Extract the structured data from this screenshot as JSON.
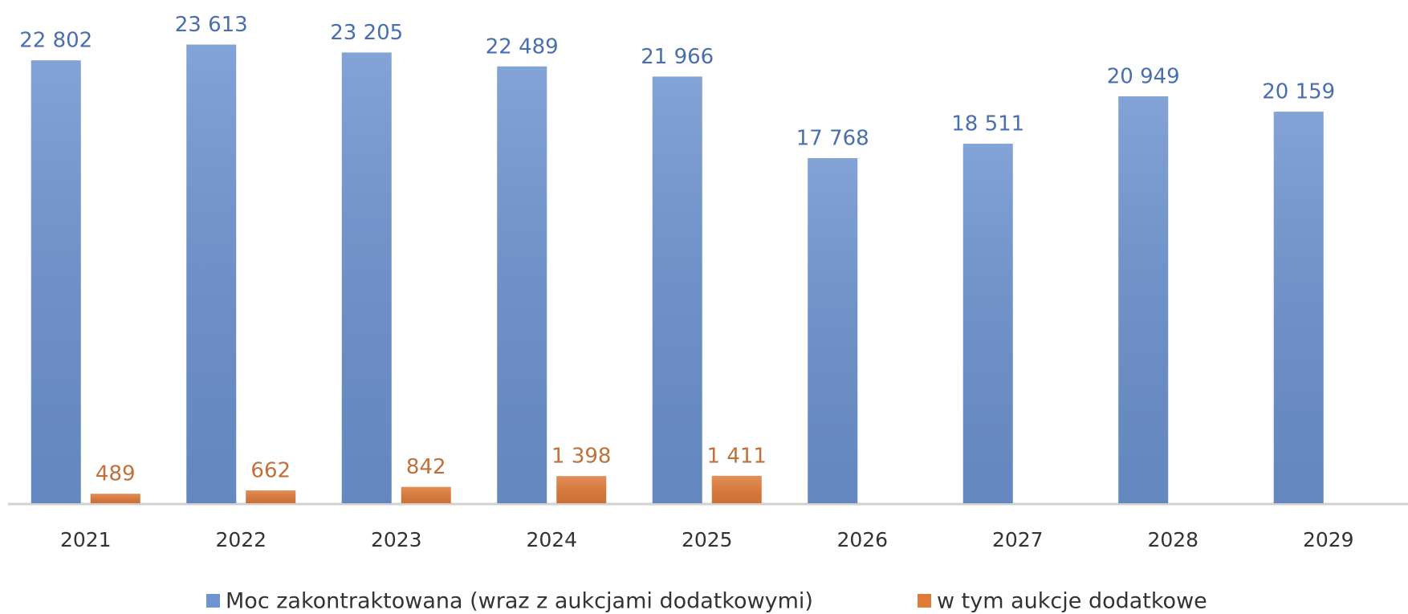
{
  "chart_data": {
    "type": "bar",
    "categories": [
      "2021",
      "2022",
      "2023",
      "2024",
      "2025",
      "2026",
      "2027",
      "2028",
      "2029"
    ],
    "series": [
      {
        "name": "Moc zakontraktowana (wraz z aukcjami dodatkowymi)",
        "color": "#6d93d0",
        "values": [
          22802,
          23613,
          23205,
          22489,
          21966,
          17768,
          18511,
          20949,
          20159
        ],
        "value_labels": [
          "22 802",
          "23 613",
          "23 205",
          "22 489",
          "21 966",
          "17 768",
          "18 511",
          "20 949",
          "20 159"
        ],
        "label_color": "#4a6fb0"
      },
      {
        "name": "w tym aukcje dodatkowe",
        "color": "#e07b39",
        "values": [
          489,
          662,
          842,
          1398,
          1411,
          null,
          null,
          null,
          null
        ],
        "value_labels": [
          "489",
          "662",
          "842",
          "1 398",
          "1 411",
          null,
          null,
          null,
          null
        ],
        "label_color": "#c0703a"
      }
    ],
    "ylim": [
      0,
      25000
    ],
    "legend": "bottom"
  }
}
